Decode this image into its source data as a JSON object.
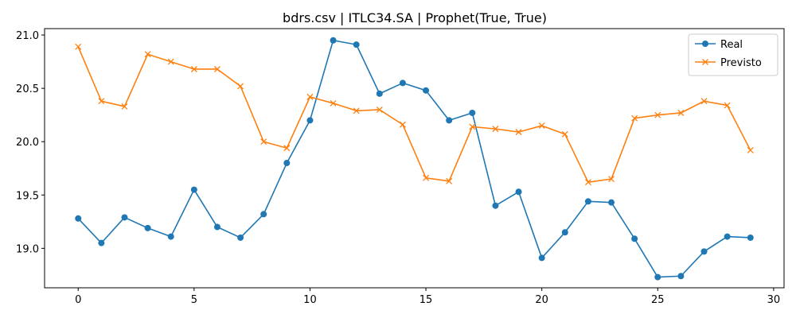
{
  "chart_data": {
    "type": "line",
    "title": "bdrs.csv | ITLC34.SA | Prophet(True, True)",
    "xlabel": "",
    "ylabel": "",
    "xlim": [
      -1.45,
      30.45
    ],
    "ylim": [
      18.63,
      21.06
    ],
    "xticks": [
      0,
      5,
      10,
      15,
      20,
      25,
      30
    ],
    "yticks": [
      19.0,
      19.5,
      20.0,
      20.5,
      21.0
    ],
    "ytick_labels": [
      "19.0",
      "19.5",
      "20.0",
      "20.5",
      "21.0"
    ],
    "grid": false,
    "legend_position": "top-right",
    "x": [
      0,
      1,
      2,
      3,
      4,
      5,
      6,
      7,
      8,
      9,
      10,
      11,
      12,
      13,
      14,
      15,
      16,
      17,
      18,
      19,
      20,
      21,
      22,
      23,
      24,
      25,
      26,
      27,
      28,
      29
    ],
    "series": [
      {
        "name": "Real",
        "color": "#1f77b4",
        "marker": "circle",
        "values": [
          19.28,
          19.05,
          19.29,
          19.19,
          19.11,
          19.55,
          19.2,
          19.1,
          19.32,
          19.8,
          20.2,
          20.95,
          20.91,
          20.45,
          20.55,
          20.48,
          20.2,
          20.27,
          19.4,
          19.53,
          18.91,
          19.15,
          19.44,
          19.43,
          19.09,
          18.73,
          18.74,
          18.97,
          19.11,
          19.1
        ]
      },
      {
        "name": "Previsto",
        "color": "#ff7f0e",
        "marker": "x",
        "values": [
          20.89,
          20.38,
          20.33,
          20.82,
          20.75,
          20.68,
          20.68,
          20.52,
          20.0,
          19.94,
          20.42,
          20.36,
          20.29,
          20.3,
          20.16,
          19.66,
          19.63,
          20.14,
          20.12,
          20.09,
          20.15,
          20.07,
          19.62,
          19.65,
          20.22,
          20.25,
          20.27,
          20.38,
          20.34,
          19.92
        ]
      }
    ]
  }
}
